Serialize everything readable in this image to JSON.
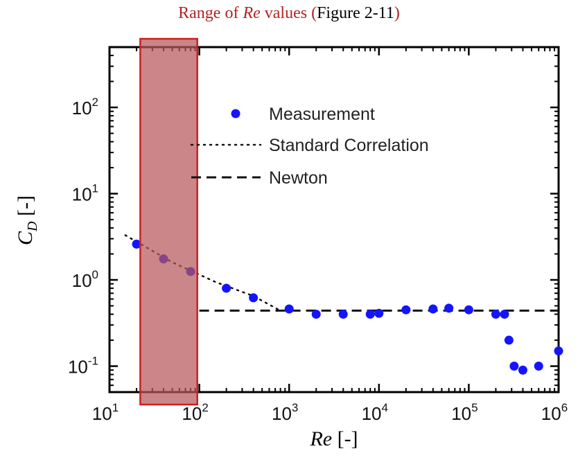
{
  "title": {
    "prefix": "Range of ",
    "italic": "Re",
    "middle": " values (",
    "figure_ref": "Figure 2-11",
    "suffix": ")"
  },
  "colors": {
    "title_red": "#b22222",
    "marker": "#1414ff",
    "highlight_fill": "#b5585a",
    "highlight_border": "#cc1f1f"
  },
  "chart_data": {
    "type": "scatter",
    "xscale": "log",
    "yscale": "log",
    "xlabel_italic": "Re",
    "xlabel_suffix": " [-]",
    "ylabel_italic": "C",
    "ylabel_sub": "D",
    "ylabel_suffix": " [-]",
    "xlim": [
      10,
      1000000
    ],
    "ylim": [
      0.05,
      500
    ],
    "xticks": [
      {
        "base": "10",
        "exp": "1"
      },
      {
        "base": "10",
        "exp": "2"
      },
      {
        "base": "10",
        "exp": "3"
      },
      {
        "base": "10",
        "exp": "4"
      },
      {
        "base": "10",
        "exp": "5"
      },
      {
        "base": "10",
        "exp": "6"
      }
    ],
    "yticks": [
      {
        "base": "10",
        "exp": "-1"
      },
      {
        "base": "10",
        "exp": "0"
      },
      {
        "base": "10",
        "exp": "1"
      },
      {
        "base": "10",
        "exp": "2"
      }
    ],
    "series": [
      {
        "name": "Measurement",
        "style": "points",
        "x": [
          20,
          40,
          80,
          200,
          400,
          1000,
          2000,
          4000,
          8000,
          10000,
          20000,
          40000,
          60000,
          100000,
          200000,
          250000,
          280000,
          320000,
          400000,
          600000,
          1000000
        ],
        "y": [
          2.6,
          1.75,
          1.25,
          0.8,
          0.62,
          0.46,
          0.4,
          0.4,
          0.4,
          0.41,
          0.45,
          0.46,
          0.47,
          0.45,
          0.4,
          0.4,
          0.2,
          0.1,
          0.09,
          0.1,
          0.15
        ]
      },
      {
        "name": "Standard Correlation",
        "style": "dotted",
        "x": [
          15,
          50,
          150,
          400,
          800
        ],
        "y": [
          3.3,
          1.6,
          0.95,
          0.65,
          0.44
        ]
      },
      {
        "name": "Newton",
        "style": "dashed",
        "x": [
          100,
          1000000
        ],
        "y": [
          0.44,
          0.44
        ]
      }
    ],
    "highlight": {
      "x_range": [
        22,
        95
      ]
    },
    "legend_position": "top-right",
    "grid": false
  }
}
